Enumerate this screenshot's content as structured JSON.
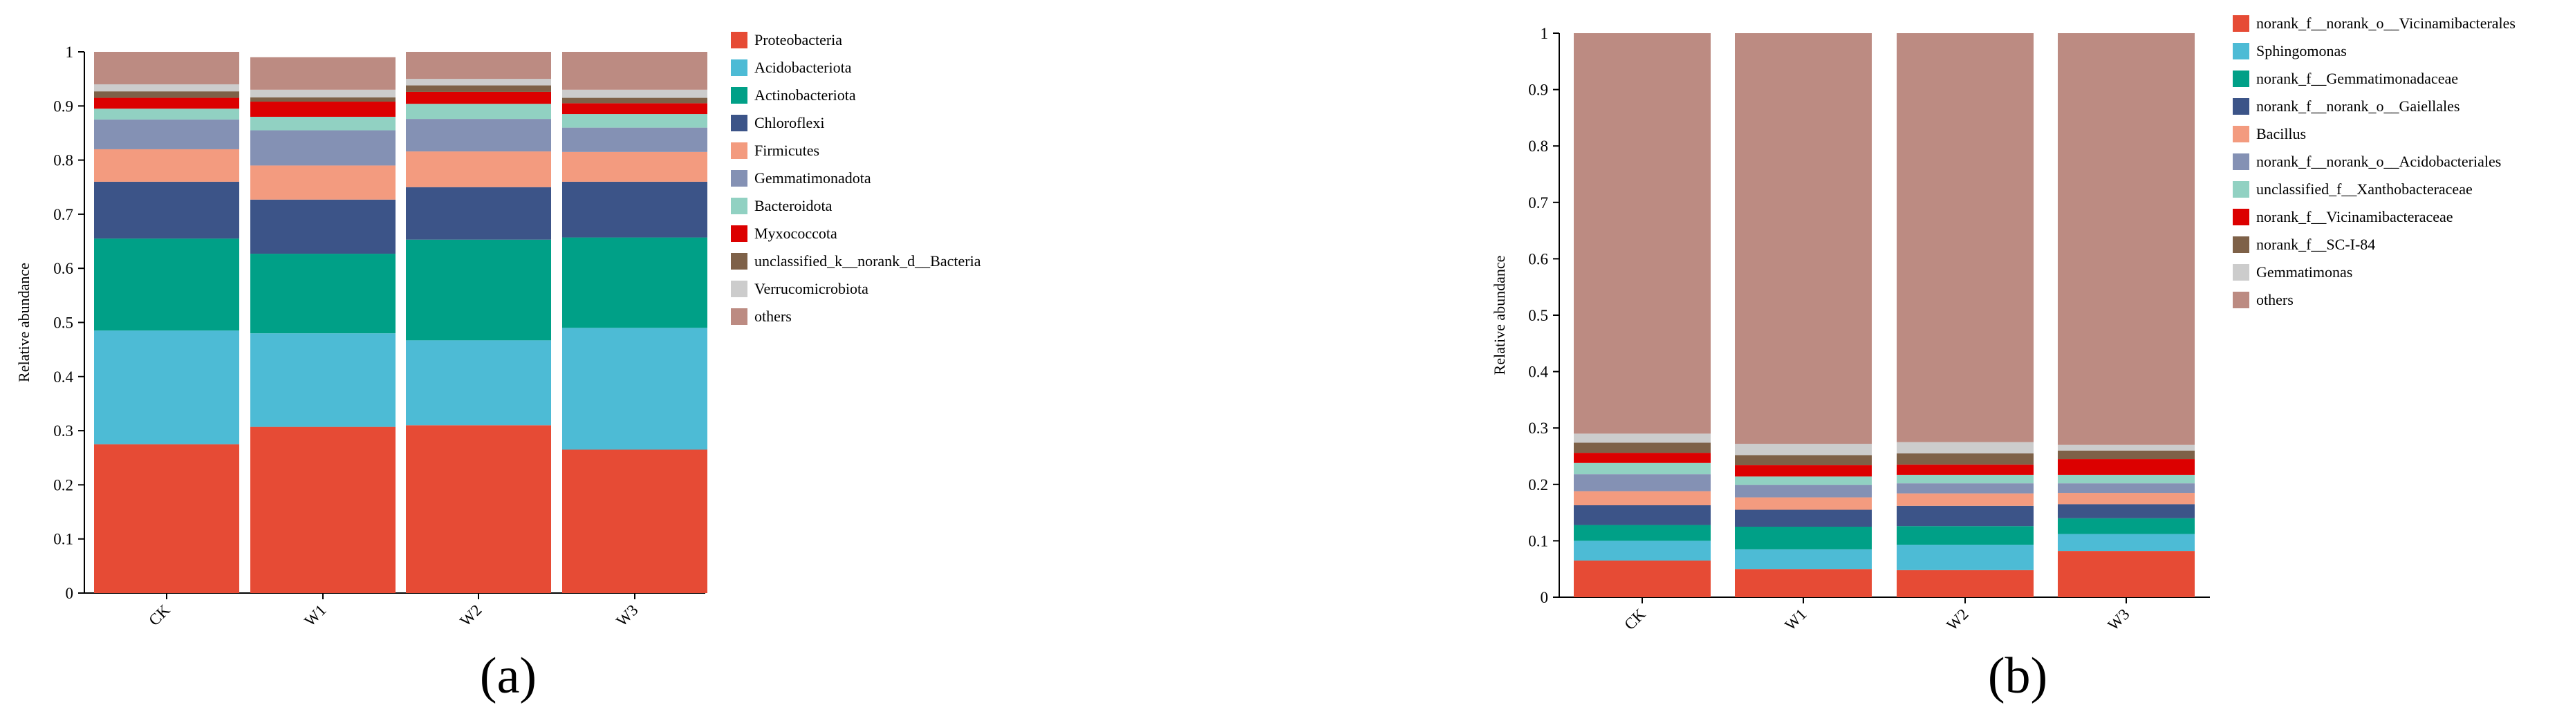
{
  "chart_data": [
    {
      "type": "bar",
      "stacked": true,
      "panel_label": "(a)",
      "ylabel": "Relative abundance",
      "ylim": [
        0,
        1
      ],
      "y_ticks": [
        "0",
        "0.1",
        "0.2",
        "0.3",
        "0.4",
        "0.5",
        "0.6",
        "0.7",
        "0.8",
        "0.9",
        "1"
      ],
      "categories": [
        "CK",
        "W1",
        "W2",
        "W3"
      ],
      "legend_position": "right",
      "series": [
        {
          "name": "Proteobacteria",
          "color": "#e64b35",
          "values": [
            0.275,
            0.307,
            0.31,
            0.265
          ]
        },
        {
          "name": "Acidobacteriota",
          "color": "#4dbbd5",
          "values": [
            0.21,
            0.173,
            0.157,
            0.225
          ]
        },
        {
          "name": "Actinobacteriota",
          "color": "#00a087",
          "values": [
            0.17,
            0.147,
            0.186,
            0.167
          ]
        },
        {
          "name": "Chloroflexi",
          "color": "#3c5488",
          "values": [
            0.105,
            0.1,
            0.097,
            0.103
          ]
        },
        {
          "name": "Firmicutes",
          "color": "#f39b7f",
          "values": [
            0.06,
            0.063,
            0.066,
            0.055
          ]
        },
        {
          "name": "Gemmatimonadota",
          "color": "#8491b4",
          "values": [
            0.055,
            0.065,
            0.06,
            0.045
          ]
        },
        {
          "name": "Bacteroidota",
          "color": "#91d1c2",
          "values": [
            0.02,
            0.025,
            0.028,
            0.025
          ]
        },
        {
          "name": "Myxococcota",
          "color": "#dc0000",
          "values": [
            0.02,
            0.028,
            0.022,
            0.02
          ]
        },
        {
          "name": "unclassified_k__norank_d__Bacteria",
          "color": "#7e6148",
          "values": [
            0.012,
            0.008,
            0.012,
            0.01
          ]
        },
        {
          "name": "Verrucomicrobiota",
          "color": "#cccccc",
          "values": [
            0.013,
            0.014,
            0.012,
            0.015
          ]
        },
        {
          "name": "others",
          "color": "#bc8b82",
          "values": [
            0.06,
            0.06,
            0.05,
            0.07
          ]
        }
      ]
    },
    {
      "type": "bar",
      "stacked": true,
      "panel_label": "(b)",
      "ylabel": "Relative abundance",
      "ylim": [
        0,
        1
      ],
      "y_ticks": [
        "0",
        "0.1",
        "0.2",
        "0.3",
        "0.4",
        "0.5",
        "0.6",
        "0.7",
        "0.8",
        "0.9",
        "1"
      ],
      "categories": [
        "CK",
        "W1",
        "W2",
        "W3"
      ],
      "legend_position": "right",
      "series": [
        {
          "name": "norank_f__norank_o__Vicinamibacterales",
          "color": "#e64b35",
          "values": [
            0.065,
            0.05,
            0.048,
            0.082
          ]
        },
        {
          "name": "Sphingomonas",
          "color": "#4dbbd5",
          "values": [
            0.035,
            0.035,
            0.045,
            0.03
          ]
        },
        {
          "name": "norank_f__Gemmatimonadaceae",
          "color": "#00a087",
          "values": [
            0.028,
            0.04,
            0.033,
            0.028
          ]
        },
        {
          "name": "norank_f__norank_o__Gaiellales",
          "color": "#3c5488",
          "values": [
            0.035,
            0.03,
            0.036,
            0.025
          ]
        },
        {
          "name": "Bacillus",
          "color": "#f39b7f",
          "values": [
            0.025,
            0.022,
            0.022,
            0.02
          ]
        },
        {
          "name": "norank_f__norank_o__Acidobacteriales",
          "color": "#8491b4",
          "values": [
            0.03,
            0.022,
            0.018,
            0.017
          ]
        },
        {
          "name": "unclassified_f__Xanthobacteraceae",
          "color": "#91d1c2",
          "values": [
            0.02,
            0.015,
            0.015,
            0.015
          ]
        },
        {
          "name": "norank_f__Vicinamibacteraceae",
          "color": "#dc0000",
          "values": [
            0.018,
            0.02,
            0.018,
            0.028
          ]
        },
        {
          "name": "norank_f__SC-I-84",
          "color": "#7e6148",
          "values": [
            0.018,
            0.018,
            0.02,
            0.015
          ]
        },
        {
          "name": "Gemmatimonas",
          "color": "#cccccc",
          "values": [
            0.016,
            0.02,
            0.02,
            0.01
          ]
        },
        {
          "name": "others",
          "color": "#bc8b82",
          "values": [
            0.71,
            0.728,
            0.725,
            0.73
          ]
        }
      ]
    }
  ]
}
